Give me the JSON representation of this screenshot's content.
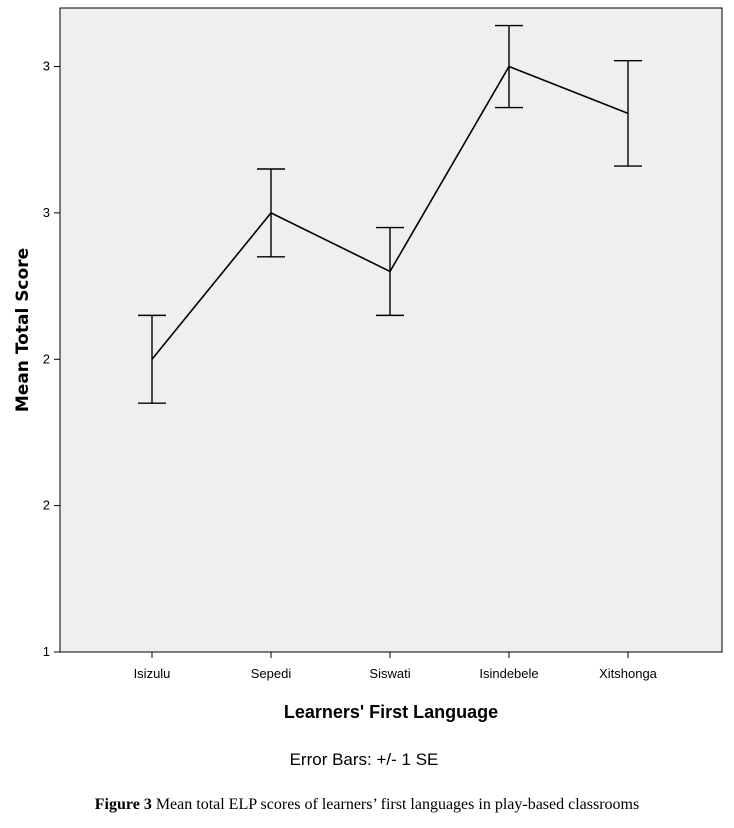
{
  "chart_data": {
    "type": "line",
    "categories": [
      "Isizulu",
      "Sepedi",
      "Siswati",
      "Isindebele",
      "Xitshonga"
    ],
    "values": [
      2.0,
      2.5,
      2.3,
      3.0,
      2.84
    ],
    "error_low": [
      1.85,
      2.35,
      2.15,
      2.86,
      2.66
    ],
    "error_high": [
      2.15,
      2.65,
      2.45,
      3.14,
      3.02
    ],
    "xlabel": "Learners' First Language",
    "ylabel": "Mean Total Score",
    "ylim": [
      1.0,
      3.2
    ],
    "yticks": [
      {
        "value": 1.0,
        "label": "1"
      },
      {
        "value": 1.5,
        "label": "2"
      },
      {
        "value": 2.0,
        "label": "2"
      },
      {
        "value": 2.5,
        "label": "3"
      },
      {
        "value": 3.0,
        "label": "3"
      }
    ],
    "grid": false,
    "note": "Error Bars: +/- 1 SE"
  },
  "caption": {
    "label": "Figure 3",
    "text": " Mean total ELP scores of learners’ first languages in play-based classrooms"
  },
  "colors": {
    "plot_background": "#efefef",
    "line": "#000000"
  }
}
